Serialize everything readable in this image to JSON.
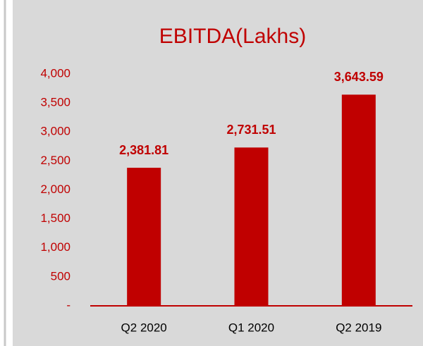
{
  "chart_data": {
    "type": "bar",
    "title": "EBITDA(Lakhs)",
    "categories": [
      "Q2 2020",
      "Q1 2020",
      "Q2 2019"
    ],
    "values": [
      2381.81,
      2731.51,
      3643.59
    ],
    "value_labels": [
      "2,381.81",
      "2,731.51",
      "3,643.59"
    ],
    "color": "#c00000",
    "ylim": [
      0,
      4000
    ],
    "yticks": [
      {
        "value": 0,
        "label": "-"
      },
      500,
      {
        "value": 1000,
        "label": "1,000"
      },
      {
        "value": 1500,
        "label": "1,500"
      },
      {
        "value": 2000,
        "label": "2,000"
      },
      {
        "value": 2500,
        "label": "2,500"
      },
      {
        "value": 3000,
        "label": "3,000"
      },
      {
        "value": 3500,
        "label": "3,500"
      },
      {
        "value": 4000,
        "label": "4,000"
      }
    ],
    "grid": false
  }
}
